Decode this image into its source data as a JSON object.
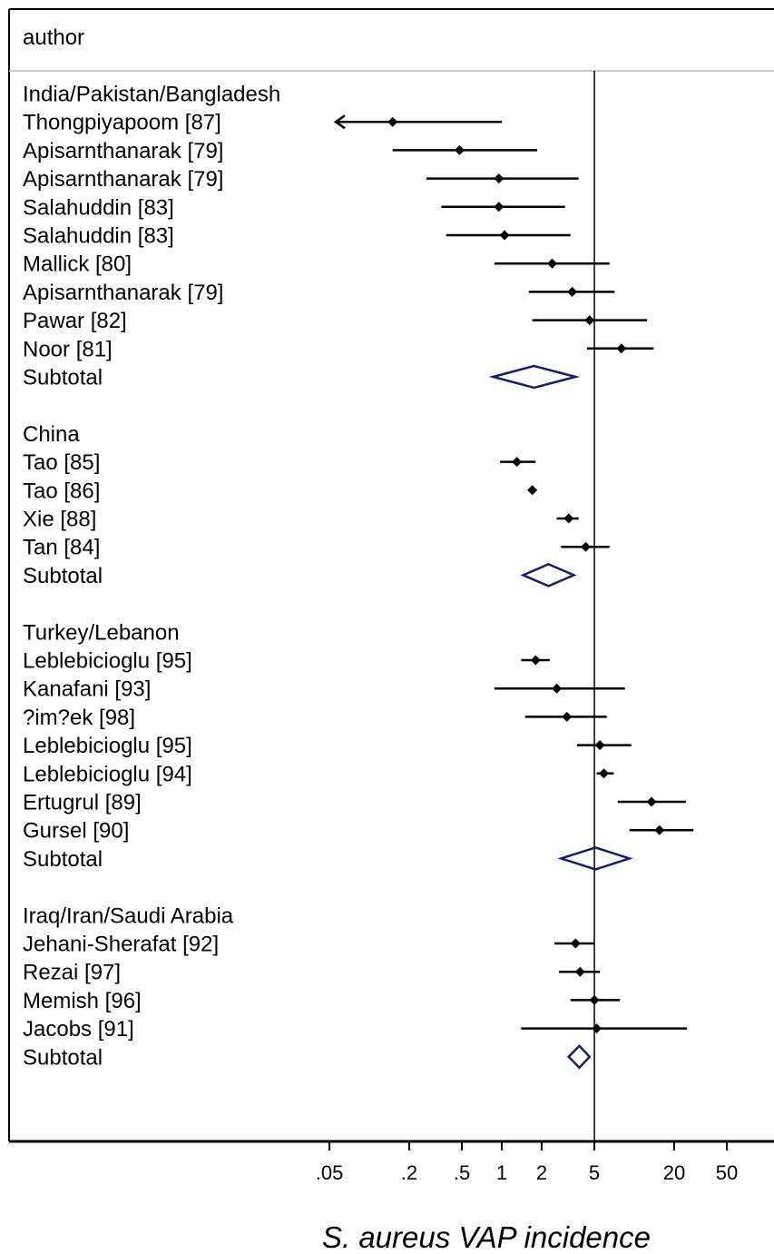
{
  "chart_data": {
    "type": "forest",
    "header": "author",
    "xlabel": "S. aureus VAP incidence",
    "x_scale": "log",
    "xlim": [
      0.01,
      100
    ],
    "reference_line": 5,
    "x_ticks": [
      {
        "value": 0.05,
        "label": ".05"
      },
      {
        "value": 0.2,
        "label": ".2"
      },
      {
        "value": 0.5,
        "label": ".5"
      },
      {
        "value": 1,
        "label": "1"
      },
      {
        "value": 2,
        "label": "2"
      },
      {
        "value": 5,
        "label": "5"
      },
      {
        "value": 20,
        "label": "20"
      },
      {
        "value": 50,
        "label": "50"
      }
    ],
    "rows": [
      {
        "kind": "group",
        "label": "India/Pakistan/Bangladesh"
      },
      {
        "kind": "study",
        "label": "Thongpiyapoom [87]",
        "est": 0.15,
        "lo": 0.01,
        "hi": 1.0,
        "lo_arrow": true
      },
      {
        "kind": "study",
        "label": "Apisarnthanarak [79]",
        "est": 0.48,
        "lo": 0.15,
        "hi": 1.85
      },
      {
        "kind": "study",
        "label": "Apisarnthanarak [79]",
        "est": 0.95,
        "lo": 0.27,
        "hi": 3.8
      },
      {
        "kind": "study",
        "label": "Salahuddin [83]",
        "est": 0.95,
        "lo": 0.35,
        "hi": 3.0
      },
      {
        "kind": "study",
        "label": "Salahuddin [83]",
        "est": 1.05,
        "lo": 0.38,
        "hi": 3.3
      },
      {
        "kind": "study",
        "label": "Mallick [80]",
        "est": 2.4,
        "lo": 0.88,
        "hi": 6.5
      },
      {
        "kind": "study",
        "label": "Apisarnthanarak [79]",
        "est": 3.4,
        "lo": 1.6,
        "hi": 7.1
      },
      {
        "kind": "study",
        "label": "Pawar [82]",
        "est": 4.6,
        "lo": 1.7,
        "hi": 12.5
      },
      {
        "kind": "study",
        "label": "Noor [81]",
        "est": 8.0,
        "lo": 4.4,
        "hi": 14.0
      },
      {
        "kind": "subtotal",
        "label": "Subtotal",
        "est": 1.75,
        "lo": 0.86,
        "hi": 3.6
      },
      {
        "kind": "spacer"
      },
      {
        "kind": "group",
        "label": "China"
      },
      {
        "kind": "study",
        "label": "Tao [85]",
        "est": 1.3,
        "lo": 0.97,
        "hi": 1.8
      },
      {
        "kind": "study",
        "label": "Tao [86]",
        "est": 1.7,
        "lo": 1.7,
        "hi": 1.7
      },
      {
        "kind": "study",
        "label": "Xie [88]",
        "est": 3.2,
        "lo": 2.6,
        "hi": 3.8
      },
      {
        "kind": "study",
        "label": "Tan [84]",
        "est": 4.3,
        "lo": 2.8,
        "hi": 6.5
      },
      {
        "kind": "subtotal",
        "label": "Subtotal",
        "est": 2.25,
        "lo": 1.45,
        "hi": 3.5
      },
      {
        "kind": "spacer"
      },
      {
        "kind": "group",
        "label": "Turkey/Lebanon"
      },
      {
        "kind": "study",
        "label": "Leblebicioglu [95]",
        "est": 1.8,
        "lo": 1.4,
        "hi": 2.3
      },
      {
        "kind": "study",
        "label": "Kanafani [93]",
        "est": 2.6,
        "lo": 0.88,
        "hi": 8.5
      },
      {
        "kind": "study",
        "label": "?im?ek [98]",
        "est": 3.1,
        "lo": 1.5,
        "hi": 6.2
      },
      {
        "kind": "study",
        "label": "Leblebicioglu [95]",
        "est": 5.5,
        "lo": 3.7,
        "hi": 9.5
      },
      {
        "kind": "study",
        "label": "Leblebicioglu [94]",
        "est": 5.9,
        "lo": 5.2,
        "hi": 7.0
      },
      {
        "kind": "study",
        "label": "Ertugrul [89]",
        "est": 13.5,
        "lo": 7.5,
        "hi": 24.5
      },
      {
        "kind": "study",
        "label": "Gursel [90]",
        "est": 15.5,
        "lo": 9.2,
        "hi": 28.0
      },
      {
        "kind": "subtotal",
        "label": "Subtotal",
        "est": 5.1,
        "lo": 2.8,
        "hi": 9.2
      },
      {
        "kind": "spacer"
      },
      {
        "kind": "group",
        "label": "Iraq/Iran/Saudi Arabia"
      },
      {
        "kind": "study",
        "label": "Jehani-Sherafat [92]",
        "est": 3.6,
        "lo": 2.5,
        "hi": 5.0
      },
      {
        "kind": "study",
        "label": "Rezai [97]",
        "est": 3.9,
        "lo": 2.7,
        "hi": 5.5
      },
      {
        "kind": "study",
        "label": "Memish [96]",
        "est": 5.0,
        "lo": 3.3,
        "hi": 7.8
      },
      {
        "kind": "study",
        "label": "Jacobs [91]",
        "est": 5.2,
        "lo": 1.4,
        "hi": 25.0
      },
      {
        "kind": "subtotal",
        "label": "Subtotal",
        "est": 3.85,
        "lo": 3.2,
        "hi": 4.6
      }
    ]
  }
}
